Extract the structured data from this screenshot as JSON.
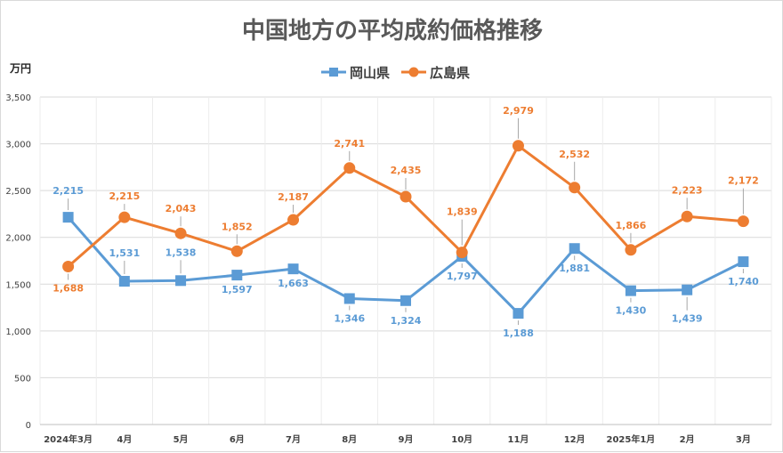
{
  "chart_data": {
    "type": "line",
    "title": "中国地方の平均成約価格推移",
    "ylabel": "万円",
    "xlabel": "",
    "ylim": [
      0,
      3500
    ],
    "yticks": [
      0,
      500,
      1000,
      1500,
      2000,
      2500,
      3000,
      3500
    ],
    "ytick_labels": [
      "0",
      "500",
      "1,000",
      "1,500",
      "2,000",
      "2,500",
      "3,000",
      "3,500"
    ],
    "categories": [
      "2024年3月",
      "4月",
      "5月",
      "6月",
      "7月",
      "8月",
      "9月",
      "10月",
      "11月",
      "12月",
      "2025年1月",
      "2月",
      "3月"
    ],
    "legend_position": "top-center",
    "grid": true,
    "series": [
      {
        "name": "岡山県",
        "color": "#5B9BD5",
        "marker": "square",
        "values": [
          2215,
          1531,
          1538,
          1597,
          1663,
          1346,
          1324,
          1797,
          1188,
          1881,
          1430,
          1439,
          1740
        ],
        "labels": [
          "2,215",
          "1,531",
          "1,538",
          "1,597",
          "1,663",
          "1,346",
          "1,324",
          "1,797",
          "1,188",
          "1,881",
          "1,430",
          "1,439",
          "1,740"
        ]
      },
      {
        "name": "広島県",
        "color": "#ED7D31",
        "marker": "circle",
        "values": [
          1688,
          2215,
          2043,
          1852,
          2187,
          2741,
          2435,
          1839,
          2979,
          2532,
          1866,
          2223,
          2172
        ],
        "labels": [
          "1,688",
          "2,215",
          "2,043",
          "1,852",
          "2,187",
          "2,741",
          "2,435",
          "1,839",
          "2,979",
          "2,532",
          "1,866",
          "2,223",
          "2,172"
        ]
      }
    ]
  }
}
